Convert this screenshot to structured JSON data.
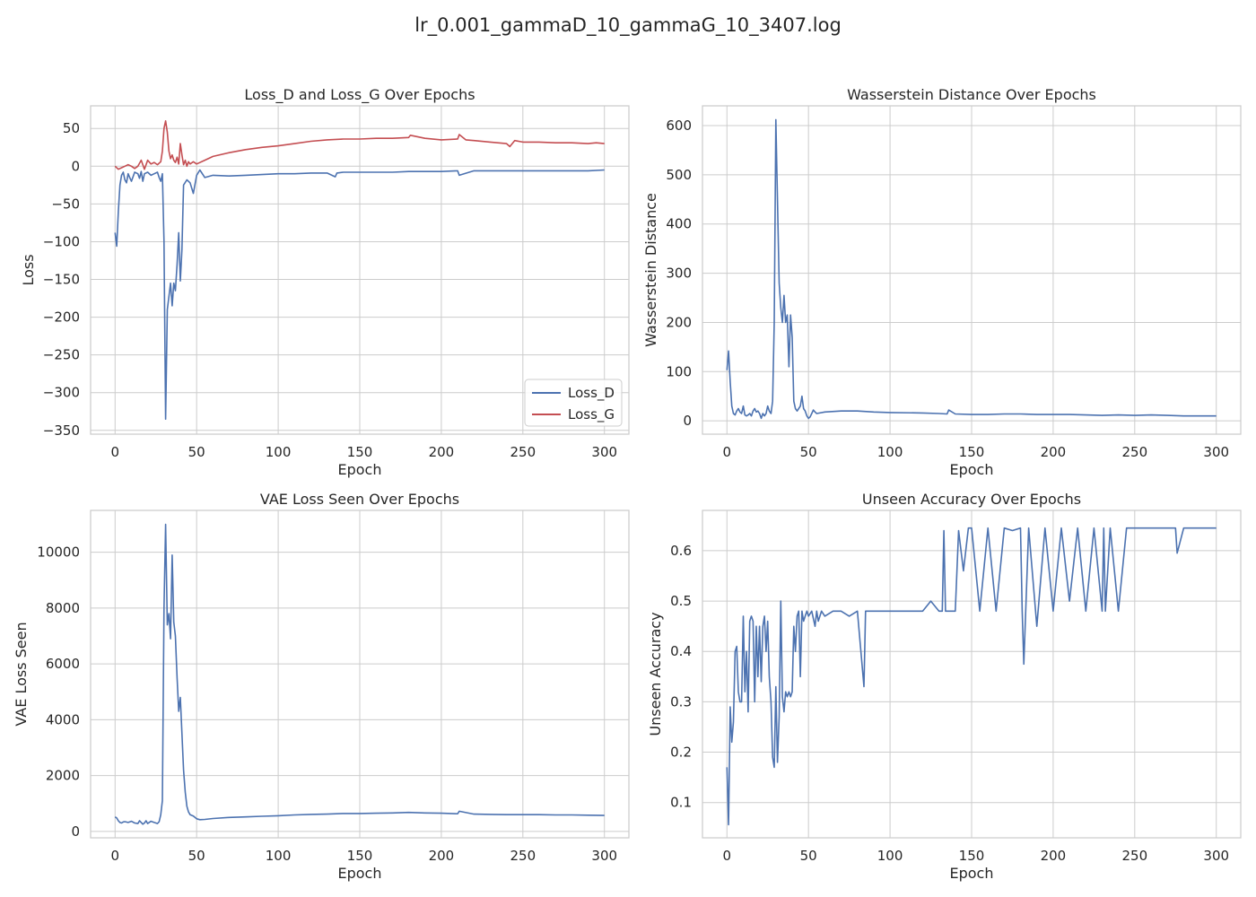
{
  "suptitle": "lr_0.001_gammaD_10_gammaG_10_3407.log",
  "colors": {
    "blue": "#4c72b0",
    "red": "#c44e52",
    "grid": "#cccccc",
    "axes_edge": "#cccccc",
    "text": "#262626"
  },
  "chart_data": [
    {
      "type": "line",
      "title": "Loss_D and Loss_G Over Epochs",
      "xlabel": "Epoch",
      "ylabel": "Loss",
      "xlim": [
        -15,
        315
      ],
      "ylim": [
        -355,
        80
      ],
      "xticks": [
        0,
        50,
        100,
        150,
        200,
        250,
        300
      ],
      "yticks": [
        50,
        0,
        -50,
        -100,
        -150,
        -200,
        -250,
        -300,
        -350
      ],
      "grid": true,
      "legend": "lower-right",
      "series": [
        {
          "name": "Loss_D",
          "color": "#4c72b0",
          "x": [
            0,
            1,
            2,
            3,
            4,
            5,
            6,
            7,
            8,
            9,
            10,
            12,
            14,
            15,
            16,
            17,
            18,
            20,
            22,
            24,
            26,
            27,
            28,
            29,
            30,
            31,
            32,
            34,
            35,
            36,
            37,
            38,
            39,
            40,
            41,
            42,
            44,
            46,
            48,
            50,
            52,
            55,
            60,
            70,
            80,
            90,
            100,
            110,
            120,
            130,
            135,
            136,
            140,
            150,
            160,
            170,
            180,
            190,
            200,
            210,
            211,
            220,
            230,
            240,
            250,
            260,
            270,
            280,
            290,
            300
          ],
          "y": [
            -88,
            -106,
            -60,
            -25,
            -12,
            -8,
            -18,
            -22,
            -10,
            -15,
            -20,
            -8,
            -10,
            -16,
            -7,
            -20,
            -10,
            -8,
            -12,
            -10,
            -8,
            -15,
            -20,
            -10,
            -100,
            -335,
            -190,
            -155,
            -185,
            -155,
            -165,
            -130,
            -88,
            -152,
            -110,
            -25,
            -18,
            -22,
            -36,
            -12,
            -5,
            -15,
            -12,
            -13,
            -12,
            -11,
            -10,
            -10,
            -9,
            -9,
            -14,
            -9,
            -8,
            -8,
            -8,
            -8,
            -7,
            -7,
            -7,
            -6,
            -12,
            -6,
            -6,
            -6,
            -6,
            -6,
            -6,
            -6,
            -6,
            -5
          ]
        },
        {
          "name": "Loss_G",
          "color": "#c44e52",
          "x": [
            0,
            2,
            4,
            6,
            8,
            10,
            12,
            14,
            16,
            17,
            18,
            20,
            22,
            24,
            26,
            28,
            29,
            30,
            31,
            32,
            33,
            34,
            35,
            36,
            37,
            38,
            39,
            40,
            41,
            42,
            43,
            44,
            45,
            46,
            48,
            50,
            55,
            60,
            70,
            80,
            90,
            100,
            110,
            120,
            130,
            140,
            150,
            160,
            170,
            180,
            181,
            190,
            200,
            210,
            211,
            215,
            220,
            230,
            240,
            242,
            245,
            250,
            260,
            270,
            280,
            290,
            295,
            300
          ],
          "y": [
            0,
            -4,
            -2,
            0,
            2,
            0,
            -3,
            0,
            8,
            2,
            -4,
            8,
            3,
            5,
            2,
            6,
            20,
            50,
            60,
            45,
            20,
            10,
            15,
            8,
            5,
            12,
            3,
            30,
            15,
            2,
            8,
            0,
            6,
            3,
            6,
            3,
            8,
            13,
            18,
            22,
            25,
            27,
            30,
            33,
            35,
            36,
            36,
            37,
            37,
            38,
            41,
            37,
            35,
            36,
            42,
            35,
            34,
            32,
            30,
            26,
            34,
            32,
            32,
            31,
            31,
            30,
            31,
            30
          ]
        }
      ]
    },
    {
      "type": "line",
      "title": "Wasserstein Distance Over Epochs",
      "xlabel": "Epoch",
      "ylabel": "Wasserstein Distance",
      "xlim": [
        -15,
        315
      ],
      "ylim": [
        -27,
        640
      ],
      "xticks": [
        0,
        50,
        100,
        150,
        200,
        250,
        300
      ],
      "yticks": [
        600,
        500,
        400,
        300,
        200,
        100,
        0
      ],
      "grid": true,
      "series": [
        {
          "name": "",
          "color": "#4c72b0",
          "x": [
            0,
            1,
            2,
            3,
            4,
            5,
            6,
            7,
            8,
            9,
            10,
            11,
            12,
            13,
            14,
            15,
            16,
            17,
            18,
            19,
            20,
            21,
            22,
            23,
            24,
            25,
            26,
            27,
            28,
            29,
            30,
            31,
            32,
            33,
            34,
            35,
            36,
            37,
            38,
            39,
            40,
            41,
            42,
            43,
            44,
            45,
            46,
            47,
            48,
            49,
            50,
            51,
            52,
            53,
            54,
            55,
            60,
            70,
            80,
            90,
            100,
            120,
            130,
            135,
            136,
            140,
            150,
            160,
            170,
            180,
            190,
            200,
            210,
            220,
            230,
            240,
            250,
            260,
            270,
            280,
            290,
            300
          ],
          "y": [
            103,
            142,
            80,
            30,
            15,
            12,
            20,
            25,
            18,
            15,
            30,
            12,
            10,
            12,
            15,
            10,
            20,
            25,
            18,
            20,
            15,
            5,
            15,
            10,
            15,
            30,
            20,
            15,
            40,
            200,
            612,
            450,
            280,
            230,
            200,
            255,
            200,
            215,
            110,
            215,
            170,
            40,
            25,
            20,
            25,
            30,
            50,
            25,
            20,
            10,
            5,
            8,
            15,
            22,
            18,
            15,
            18,
            20,
            20,
            18,
            17,
            16,
            15,
            14,
            22,
            14,
            13,
            13,
            14,
            14,
            13,
            13,
            13,
            12,
            11,
            12,
            11,
            12,
            11,
            10,
            10,
            10
          ]
        }
      ]
    },
    {
      "type": "line",
      "title": "VAE Loss Seen Over Epochs",
      "xlabel": "Epoch",
      "ylabel": "VAE Loss Seen",
      "xlim": [
        -15,
        315
      ],
      "ylim": [
        -230,
        11500
      ],
      "xticks": [
        0,
        50,
        100,
        150,
        200,
        250,
        300
      ],
      "yticks": [
        10000,
        8000,
        6000,
        4000,
        2000,
        0
      ],
      "grid": true,
      "series": [
        {
          "name": "",
          "color": "#4c72b0",
          "x": [
            0,
            1,
            2,
            3,
            4,
            5,
            6,
            8,
            10,
            12,
            14,
            15,
            16,
            17,
            18,
            19,
            20,
            22,
            24,
            26,
            27,
            28,
            29,
            30,
            31,
            32,
            33,
            34,
            35,
            36,
            37,
            38,
            39,
            40,
            41,
            42,
            43,
            44,
            45,
            46,
            48,
            50,
            52,
            55,
            60,
            70,
            80,
            90,
            100,
            110,
            120,
            130,
            140,
            150,
            160,
            170,
            180,
            190,
            200,
            210,
            211,
            220,
            230,
            240,
            250,
            260,
            270,
            280,
            290,
            300
          ],
          "y": [
            520,
            480,
            380,
            320,
            300,
            340,
            350,
            320,
            360,
            300,
            280,
            380,
            320,
            260,
            300,
            380,
            280,
            360,
            320,
            280,
            350,
            600,
            1100,
            8000,
            11000,
            7400,
            7800,
            6900,
            9900,
            7500,
            7000,
            5500,
            4300,
            4800,
            3500,
            2200,
            1400,
            900,
            700,
            600,
            550,
            450,
            420,
            430,
            460,
            500,
            520,
            540,
            560,
            590,
            610,
            620,
            640,
            640,
            650,
            660,
            680,
            660,
            650,
            630,
            720,
            620,
            610,
            600,
            600,
            600,
            590,
            590,
            580,
            570
          ]
        }
      ]
    },
    {
      "type": "line",
      "title": "Unseen Accuracy Over Epochs",
      "xlabel": "Epoch",
      "ylabel": "Unseen Accuracy",
      "xlim": [
        -15,
        315
      ],
      "ylim": [
        0.03,
        0.68
      ],
      "xticks": [
        0,
        50,
        100,
        150,
        200,
        250,
        300
      ],
      "yticks": [
        0.6,
        0.5,
        0.4,
        0.3,
        0.2,
        0.1
      ],
      "grid": true,
      "series": [
        {
          "name": "",
          "color": "#4c72b0",
          "x": [
            0,
            1,
            2,
            3,
            4,
            5,
            6,
            7,
            8,
            9,
            10,
            11,
            12,
            13,
            14,
            15,
            16,
            17,
            18,
            19,
            20,
            21,
            22,
            23,
            24,
            25,
            26,
            27,
            28,
            29,
            30,
            31,
            32,
            33,
            34,
            35,
            36,
            37,
            38,
            39,
            40,
            41,
            42,
            43,
            44,
            45,
            46,
            47,
            48,
            49,
            50,
            52,
            54,
            55,
            56,
            58,
            60,
            65,
            70,
            75,
            80,
            84,
            85,
            90,
            95,
            100,
            105,
            110,
            115,
            120,
            125,
            130,
            132,
            133,
            134,
            135,
            140,
            142,
            145,
            148,
            150,
            155,
            160,
            165,
            170,
            175,
            180,
            181,
            182,
            185,
            190,
            195,
            200,
            205,
            210,
            215,
            220,
            225,
            230,
            231,
            232,
            235,
            240,
            245,
            250,
            255,
            260,
            270,
            275,
            276,
            280,
            290,
            300
          ],
          "y": [
            0.17,
            0.056,
            0.29,
            0.22,
            0.26,
            0.4,
            0.41,
            0.32,
            0.3,
            0.3,
            0.47,
            0.32,
            0.4,
            0.28,
            0.46,
            0.47,
            0.46,
            0.3,
            0.45,
            0.35,
            0.45,
            0.34,
            0.45,
            0.47,
            0.4,
            0.46,
            0.35,
            0.3,
            0.19,
            0.17,
            0.33,
            0.18,
            0.27,
            0.5,
            0.31,
            0.28,
            0.32,
            0.31,
            0.32,
            0.31,
            0.32,
            0.45,
            0.4,
            0.47,
            0.48,
            0.35,
            0.48,
            0.46,
            0.47,
            0.48,
            0.47,
            0.48,
            0.45,
            0.48,
            0.46,
            0.48,
            0.47,
            0.48,
            0.48,
            0.47,
            0.48,
            0.33,
            0.48,
            0.48,
            0.48,
            0.48,
            0.48,
            0.48,
            0.48,
            0.48,
            0.5,
            0.48,
            0.48,
            0.64,
            0.48,
            0.48,
            0.48,
            0.64,
            0.56,
            0.645,
            0.645,
            0.48,
            0.645,
            0.48,
            0.645,
            0.64,
            0.645,
            0.48,
            0.375,
            0.645,
            0.45,
            0.645,
            0.48,
            0.645,
            0.5,
            0.645,
            0.48,
            0.645,
            0.48,
            0.645,
            0.48,
            0.645,
            0.48,
            0.645,
            0.645,
            0.645,
            0.645,
            0.645,
            0.645,
            0.595,
            0.645,
            0.645,
            0.645
          ]
        }
      ]
    }
  ]
}
